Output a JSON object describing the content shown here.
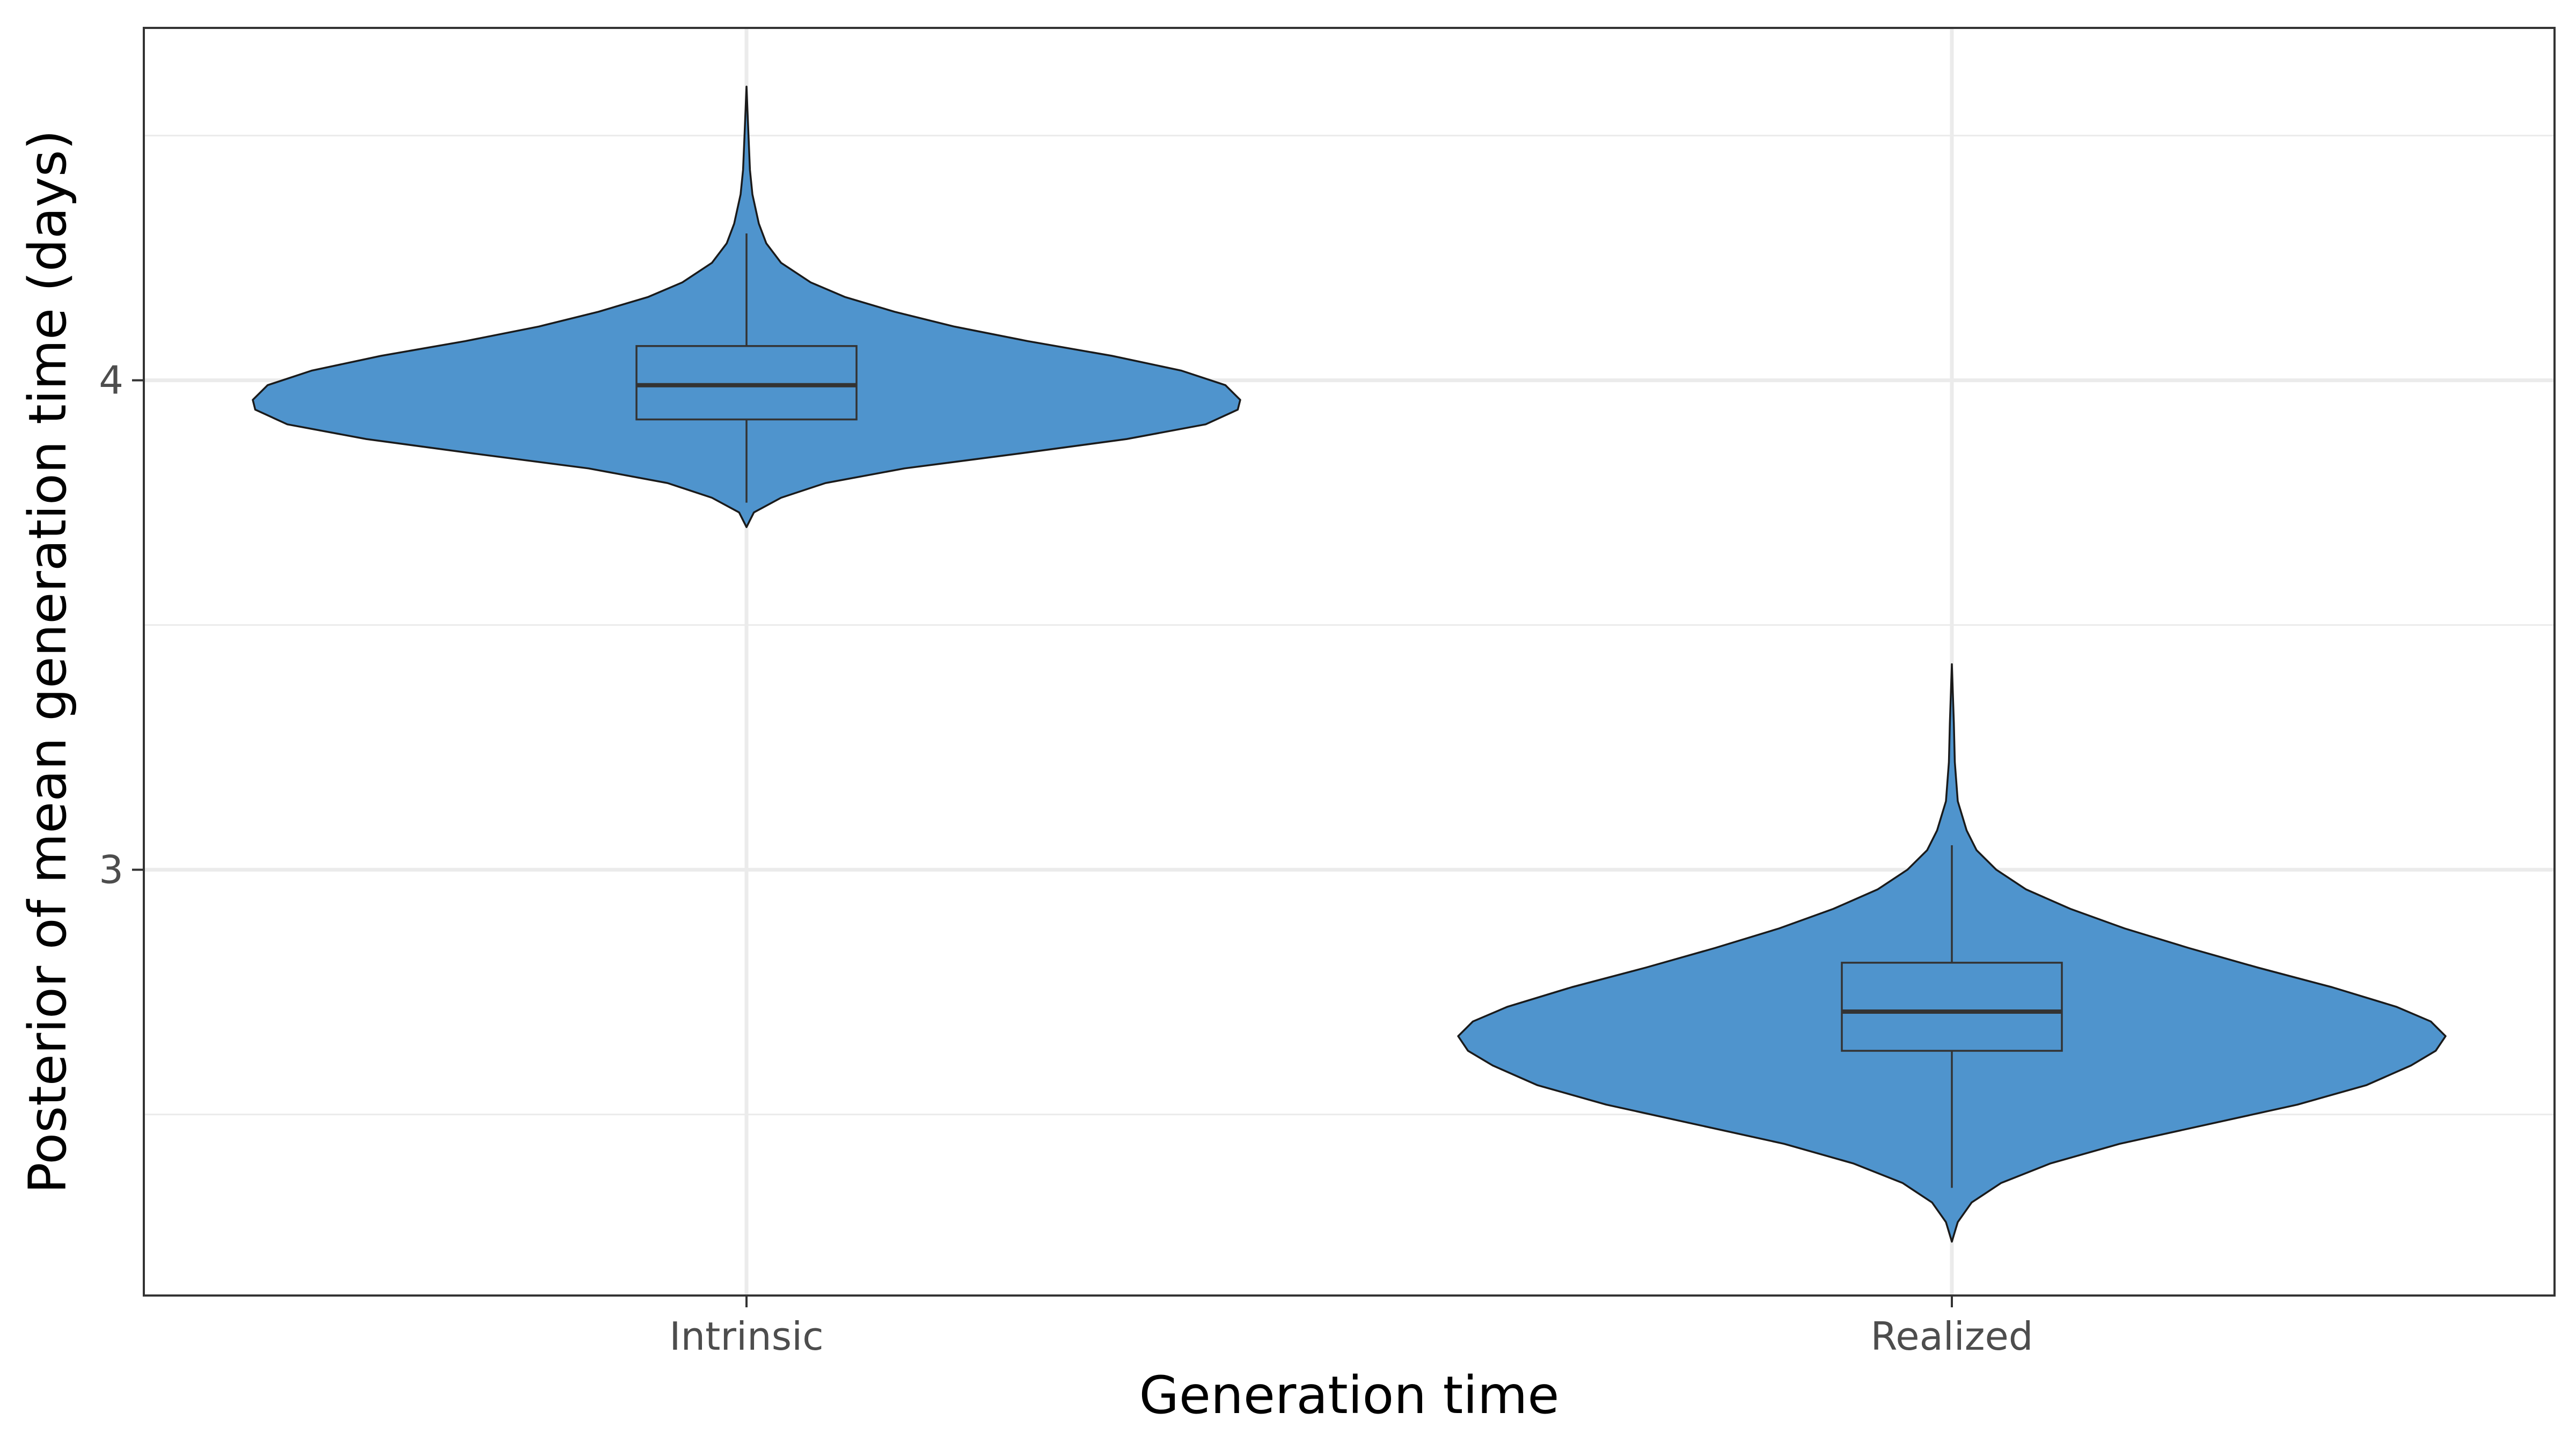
{
  "chart_data": {
    "type": "violin",
    "title": "",
    "xlabel": "Generation time",
    "ylabel": "Posterior of mean generation time (days)",
    "ylim": [
      2.13,
      4.72
    ],
    "yticks": [
      3,
      4
    ],
    "ytick_labels": [
      "3",
      "4"
    ],
    "grid": true,
    "fill_color": "#4f94cd",
    "outline_color": "#1a1a1a",
    "categories": [
      "Intrinsic",
      "Realized"
    ],
    "series": [
      {
        "name": "Intrinsic",
        "min": 3.7,
        "max": 4.6,
        "whisker_low": 3.75,
        "q1": 3.92,
        "median": 3.99,
        "q3": 4.07,
        "whisker_high": 4.3,
        "density": [
          [
            3.7,
            0.0
          ],
          [
            3.73,
            0.015
          ],
          [
            3.76,
            0.07
          ],
          [
            3.79,
            0.16
          ],
          [
            3.82,
            0.32
          ],
          [
            3.85,
            0.55
          ],
          [
            3.88,
            0.77
          ],
          [
            3.91,
            0.93
          ],
          [
            3.94,
            0.995
          ],
          [
            3.96,
            1.0
          ],
          [
            3.99,
            0.97
          ],
          [
            4.02,
            0.88
          ],
          [
            4.05,
            0.74
          ],
          [
            4.08,
            0.57
          ],
          [
            4.11,
            0.42
          ],
          [
            4.14,
            0.3
          ],
          [
            4.17,
            0.2
          ],
          [
            4.2,
            0.13
          ],
          [
            4.24,
            0.07
          ],
          [
            4.28,
            0.04
          ],
          [
            4.32,
            0.025
          ],
          [
            4.38,
            0.012
          ],
          [
            4.43,
            0.007
          ],
          [
            4.5,
            0.004
          ],
          [
            4.6,
            0.0
          ]
        ]
      },
      {
        "name": "Realized",
        "min": 2.24,
        "max": 3.42,
        "whisker_low": 2.35,
        "q1": 2.63,
        "median": 2.71,
        "q3": 2.81,
        "whisker_high": 3.05,
        "density": [
          [
            2.24,
            0.0
          ],
          [
            2.28,
            0.012
          ],
          [
            2.32,
            0.04
          ],
          [
            2.36,
            0.1
          ],
          [
            2.4,
            0.2
          ],
          [
            2.44,
            0.34
          ],
          [
            2.48,
            0.52
          ],
          [
            2.52,
            0.7
          ],
          [
            2.56,
            0.84
          ],
          [
            2.6,
            0.93
          ],
          [
            2.63,
            0.98
          ],
          [
            2.66,
            1.0
          ],
          [
            2.69,
            0.97
          ],
          [
            2.72,
            0.9
          ],
          [
            2.76,
            0.77
          ],
          [
            2.8,
            0.62
          ],
          [
            2.84,
            0.48
          ],
          [
            2.88,
            0.35
          ],
          [
            2.92,
            0.24
          ],
          [
            2.96,
            0.15
          ],
          [
            3.0,
            0.09
          ],
          [
            3.04,
            0.05
          ],
          [
            3.08,
            0.03
          ],
          [
            3.14,
            0.012
          ],
          [
            3.22,
            0.006
          ],
          [
            3.3,
            0.004
          ],
          [
            3.42,
            0.0
          ]
        ]
      }
    ]
  }
}
